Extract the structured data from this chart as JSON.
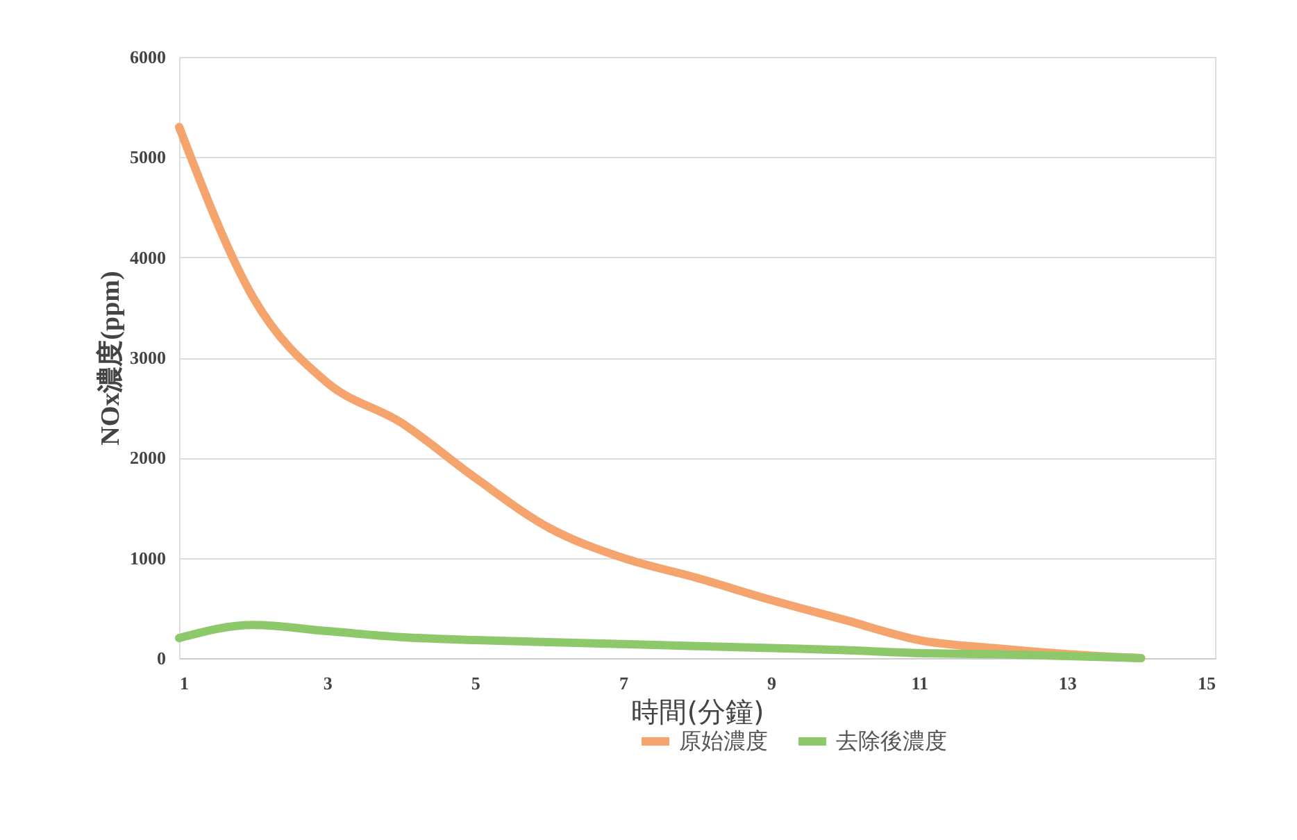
{
  "chart_data": {
    "type": "line",
    "xlabel": "時間(分鐘)",
    "ylabel": "NOx濃度(ppm)",
    "x": [
      1,
      2,
      3,
      4,
      5,
      6,
      7,
      8,
      9,
      10,
      11,
      12,
      13,
      14
    ],
    "series": [
      {
        "name": "原始濃度",
        "color": "#f4a46c",
        "values": [
          5300,
          3600,
          2750,
          2350,
          1800,
          1300,
          1000,
          800,
          580,
          380,
          180,
          100,
          40,
          0
        ]
      },
      {
        "name": "去除後濃度",
        "color": "#8dc96b",
        "values": [
          200,
          330,
          270,
          210,
          180,
          160,
          140,
          120,
          100,
          80,
          50,
          40,
          20,
          0
        ]
      }
    ],
    "xlim": [
      1,
      15
    ],
    "xticks": [
      1,
      3,
      5,
      7,
      9,
      11,
      13,
      15
    ],
    "ylim": [
      0,
      6000
    ],
    "yticks": [
      0,
      1000,
      2000,
      3000,
      4000,
      5000,
      6000
    ],
    "grid": "y",
    "legend": "bottom right",
    "marker": "none",
    "line_style": "solid"
  }
}
